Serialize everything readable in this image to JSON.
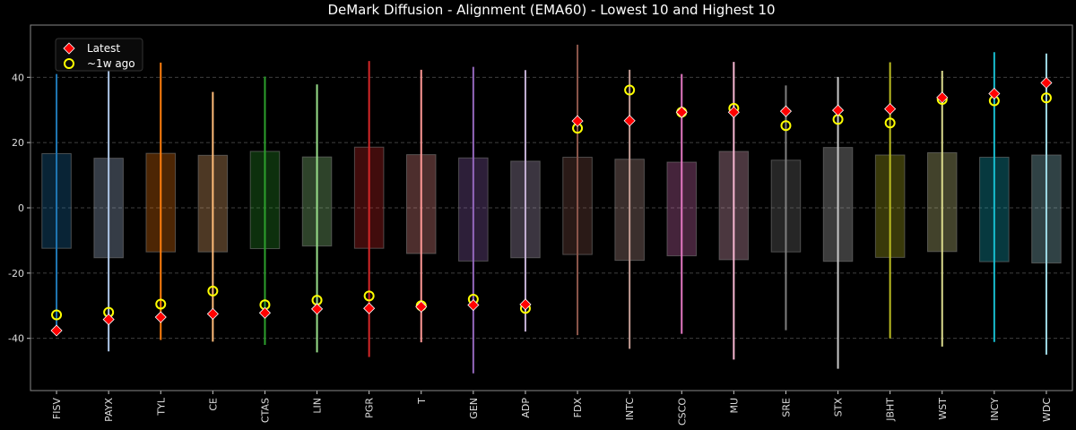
{
  "chart_data": {
    "type": "box",
    "title": "DeMark Diffusion - Alignment (EMA60) - Lowest 10 and Highest 10",
    "xlabel": "",
    "ylabel": "",
    "ylim": [
      -56,
      56
    ],
    "yticks": [
      -40,
      -20,
      0,
      20,
      40
    ],
    "grid": true,
    "legend": {
      "placement": "top-left",
      "entries": [
        {
          "label": "Latest",
          "marker": "red-diamond",
          "color": "#ff0000"
        },
        {
          "label": "~1w ago",
          "marker": "yellow-circle",
          "color": "#ffff00"
        }
      ]
    },
    "categories": [
      "FISV",
      "PAYX",
      "TYL",
      "CE",
      "CTAS",
      "LIN",
      "PGR",
      "T",
      "GEN",
      "ADP",
      "FDX",
      "INTC",
      "CSCO",
      "MU",
      "SRE",
      "STX",
      "JBHT",
      "WST",
      "INCY",
      "WDC"
    ],
    "colors": [
      "#1f77b4",
      "#aec7e8",
      "#ff7f0e",
      "#ffbb78",
      "#2ca02c",
      "#98df8a",
      "#d62728",
      "#ff9896",
      "#9467bd",
      "#c5b0d5",
      "#8c564b",
      "#c49c94",
      "#e377c2",
      "#f7b6d2",
      "#7f7f7f",
      "#c7c7c7",
      "#bcbd22",
      "#dbdb8d",
      "#17becf",
      "#9edae5"
    ],
    "box_low": [
      -12.4,
      -15.3,
      -13.5,
      -13.5,
      -12.5,
      -11.7,
      -12.4,
      -14.0,
      -16.3,
      -15.3,
      -14.3,
      -16.1,
      -14.7,
      -15.9,
      -13.5,
      -16.4,
      -15.2,
      -13.4,
      -16.5,
      -16.9
    ],
    "box_high": [
      16.6,
      15.2,
      16.7,
      16.1,
      17.3,
      15.6,
      18.6,
      16.3,
      15.3,
      14.3,
      15.5,
      14.9,
      14.0,
      17.3,
      14.6,
      18.5,
      16.2,
      16.9,
      15.5,
      16.2
    ],
    "whisker_low": [
      -37.0,
      -44.0,
      -40.5,
      -41.0,
      -42.0,
      -44.3,
      -45.7,
      -41.2,
      -50.7,
      -37.9,
      -39.0,
      -43.2,
      -38.6,
      -46.5,
      -37.5,
      -49.3,
      -40.0,
      -42.5,
      -41.1,
      -45.0
    ],
    "whisker_high": [
      41.0,
      44.0,
      44.5,
      35.5,
      40.2,
      37.8,
      45.0,
      42.3,
      43.2,
      42.2,
      50.0,
      42.3,
      41.0,
      44.7,
      37.5,
      40.1,
      44.6,
      42.0,
      47.7,
      47.3
    ],
    "series": [
      {
        "name": "Latest",
        "values": [
          -37.6,
          -34.2,
          -33.5,
          -32.5,
          -32.2,
          -31.0,
          -30.8,
          -30.3,
          -29.8,
          -29.6,
          26.6,
          26.7,
          29.3,
          29.3,
          29.6,
          29.9,
          30.3,
          33.8,
          35.0,
          38.3
        ]
      },
      {
        "name": "~1w ago",
        "values": [
          -32.8,
          -32.0,
          -29.5,
          -25.5,
          -29.7,
          -28.3,
          -27.0,
          -30.0,
          -28.0,
          -30.8,
          24.4,
          36.1,
          29.3,
          30.5,
          25.2,
          27.1,
          26.0,
          33.2,
          32.8,
          33.7
        ]
      }
    ]
  }
}
